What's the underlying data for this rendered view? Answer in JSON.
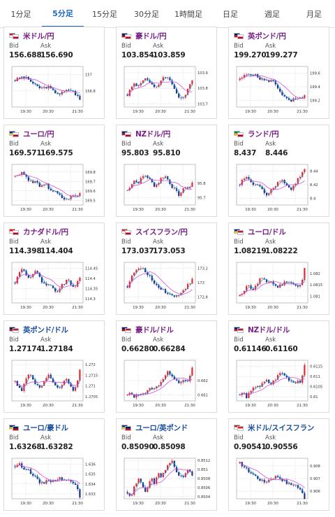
{
  "tabs": [
    {
      "label": "1分足",
      "active": false
    },
    {
      "label": "5分足",
      "active": true
    },
    {
      "label": "15分足",
      "active": false
    },
    {
      "label": "30分足",
      "active": false
    },
    {
      "label": "1時間足",
      "active": false
    },
    {
      "label": "日足",
      "active": false
    },
    {
      "label": "週足",
      "active": false
    },
    {
      "label": "月足",
      "active": false
    }
  ],
  "bid_label": "Bid",
  "ask_label": "Ask",
  "time_labels": [
    "19:30",
    "20:30",
    "21:30"
  ],
  "colors": {
    "up": "#e8242c",
    "down": "#1c2f8c",
    "ma_fast": "#1fa4e0",
    "ma_slow": "#d43ad4",
    "active_tab": "#1a66c9"
  },
  "pairs": [
    {
      "name": "米ドル/円",
      "name_color": "purple",
      "flags": [
        "us-flag",
        "jp-flag"
      ],
      "bid": "156.688",
      "ask": "156.690",
      "y_ticks": [
        "157",
        "156.8"
      ],
      "ylim": [
        156.6,
        157.1
      ],
      "trend": [
        156.93,
        156.95,
        156.97,
        156.96,
        156.94,
        156.9,
        156.86,
        156.84,
        156.83,
        156.85,
        156.84,
        156.8,
        156.78,
        156.76,
        156.78,
        156.8,
        156.82,
        156.79,
        156.75,
        156.69
      ]
    },
    {
      "name": "豪ドル/円",
      "name_color": "purple",
      "flags": [
        "au-flag",
        "jp-flag"
      ],
      "bid": "103.854",
      "ask": "103.859",
      "y_ticks": [
        "103.9",
        "103.8",
        "103.7"
      ],
      "ylim": [
        103.68,
        103.94
      ],
      "trend": [
        103.76,
        103.8,
        103.83,
        103.81,
        103.84,
        103.87,
        103.85,
        103.82,
        103.8,
        103.82,
        103.86,
        103.88,
        103.86,
        103.83,
        103.79,
        103.75,
        103.73,
        103.76,
        103.8,
        103.85
      ]
    },
    {
      "name": "英ポンド/円",
      "name_color": "purple",
      "flags": [
        "gb-flag",
        "jp-flag"
      ],
      "bid": "199.270",
      "ask": "199.277",
      "y_ticks": [
        "199.6",
        "199.4",
        "199.2"
      ],
      "ylim": [
        199.1,
        199.7
      ],
      "trend": [
        199.5,
        199.55,
        199.58,
        199.6,
        199.58,
        199.55,
        199.52,
        199.5,
        199.48,
        199.5,
        199.47,
        199.4,
        199.32,
        199.25,
        199.2,
        199.18,
        199.22,
        199.2,
        199.24,
        199.27
      ]
    },
    {
      "name": "ユーロ/円",
      "name_color": "purple",
      "flags": [
        "eu-flag",
        "jp-flag"
      ],
      "bid": "169.571",
      "ask": "169.575",
      "y_ticks": [
        "169.8",
        "169.7",
        "169.6",
        "169.5"
      ],
      "ylim": [
        169.45,
        169.88
      ],
      "trend": [
        169.75,
        169.78,
        169.8,
        169.76,
        169.72,
        169.68,
        169.7,
        169.66,
        169.64,
        169.67,
        169.62,
        169.6,
        169.58,
        169.55,
        169.52,
        169.5,
        169.53,
        169.55,
        169.54,
        169.57
      ]
    },
    {
      "name": "NZドル/円",
      "name_color": "purple",
      "flags": [
        "nz-flag",
        "jp-flag"
      ],
      "bid": "95.803",
      "ask": "95.810",
      "y_ticks": [
        "95.8",
        "95.7"
      ],
      "ylim": [
        95.65,
        95.93
      ],
      "trend": [
        95.75,
        95.79,
        95.82,
        95.8,
        95.83,
        95.86,
        95.84,
        95.81,
        95.78,
        95.8,
        95.84,
        95.85,
        95.82,
        95.78,
        95.75,
        95.72,
        95.74,
        95.78,
        95.76,
        95.8
      ]
    },
    {
      "name": "ランド/円",
      "name_color": "purple",
      "flags": [
        "za-flag",
        "jp-flag"
      ],
      "bid": "8.437",
      "ask": "8.446",
      "y_ticks": [
        "8.44",
        "8.42",
        "8.4"
      ],
      "ylim": [
        8.39,
        8.45
      ],
      "trend": [
        8.42,
        8.428,
        8.432,
        8.425,
        8.418,
        8.422,
        8.415,
        8.41,
        8.405,
        8.412,
        8.418,
        8.422,
        8.428,
        8.424,
        8.418,
        8.412,
        8.42,
        8.428,
        8.435,
        8.442
      ]
    },
    {
      "name": "カナダドル/円",
      "name_color": "purple",
      "flags": [
        "ca-flag",
        "jp-flag"
      ],
      "bid": "114.398",
      "ask": "114.404",
      "y_ticks": [
        "114.45",
        "114.4",
        "114.35",
        "114.3"
      ],
      "ylim": [
        114.28,
        114.48
      ],
      "trend": [
        114.38,
        114.42,
        114.45,
        114.43,
        114.4,
        114.42,
        114.44,
        114.41,
        114.38,
        114.36,
        114.37,
        114.35,
        114.33,
        114.35,
        114.37,
        114.39,
        114.38,
        114.36,
        114.37,
        114.4
      ]
    },
    {
      "name": "スイスフラン/円",
      "name_color": "purple",
      "flags": [
        "ch-flag",
        "jp-flag"
      ],
      "bid": "173.037",
      "ask": "173.053",
      "y_ticks": [
        "173.2",
        "173",
        "172.8"
      ],
      "ylim": [
        172.72,
        173.28
      ],
      "trend": [
        172.95,
        173.05,
        173.15,
        173.18,
        173.2,
        173.16,
        173.12,
        173.05,
        172.98,
        172.95,
        172.92,
        172.88,
        172.85,
        172.82,
        172.8,
        172.84,
        172.88,
        172.93,
        172.98,
        173.04
      ]
    },
    {
      "name": "ユーロ/ドル",
      "name_color": "purple",
      "flags": [
        "eu-flag",
        "us-flag"
      ],
      "bid": "1.08219",
      "ask": "1.08222",
      "y_ticks": [
        "1.082",
        "1.0815",
        "1.081"
      ],
      "ylim": [
        1.0807,
        1.0825
      ],
      "trend": [
        1.081,
        1.0812,
        1.0815,
        1.0814,
        1.0813,
        1.0815,
        1.0818,
        1.0817,
        1.0816,
        1.0817,
        1.0815,
        1.0814,
        1.0815,
        1.0816,
        1.0817,
        1.0816,
        1.0815,
        1.0814,
        1.0815,
        1.0822
      ]
    },
    {
      "name": "英ポンド/ドル",
      "name_color": "blue",
      "flags": [
        "gb-flag",
        "us-flag"
      ],
      "bid": "1.27174",
      "ask": "1.27184",
      "y_ticks": [
        "1.272",
        "1.2715",
        "1.271",
        "1.2705"
      ],
      "ylim": [
        1.2703,
        1.2722
      ],
      "trend": [
        1.2712,
        1.271,
        1.2708,
        1.2712,
        1.2716,
        1.2714,
        1.2711,
        1.2709,
        1.271,
        1.2713,
        1.2715,
        1.2712,
        1.271,
        1.2708,
        1.2711,
        1.2713,
        1.271,
        1.2708,
        1.271,
        1.2717
      ]
    },
    {
      "name": "豪ドル/ドル",
      "name_color": "purple",
      "flags": [
        "au-flag",
        "us-flag"
      ],
      "bid": "0.66280",
      "ask": "0.66284",
      "y_ticks": [
        "0.662",
        "0.661"
      ],
      "ylim": [
        0.6606,
        0.6634
      ],
      "trend": [
        0.661,
        0.6611,
        0.6609,
        0.661,
        0.6612,
        0.6611,
        0.6613,
        0.6615,
        0.6614,
        0.6617,
        0.662,
        0.6623,
        0.6626,
        0.6624,
        0.6621,
        0.6619,
        0.662,
        0.6619,
        0.662,
        0.6628
      ]
    },
    {
      "name": "NZドル/ドル",
      "name_color": "purple",
      "flags": [
        "nz-flag",
        "us-flag"
      ],
      "bid": "0.61146",
      "ask": "0.61160",
      "y_ticks": [
        "0.6115",
        "0.611",
        "0.6105",
        "0.61"
      ],
      "ylim": [
        0.6098,
        0.6118
      ],
      "trend": [
        0.6101,
        0.6102,
        0.61,
        0.6102,
        0.6104,
        0.6106,
        0.6105,
        0.6107,
        0.6108,
        0.6106,
        0.6108,
        0.611,
        0.6112,
        0.6111,
        0.6109,
        0.6108,
        0.6107,
        0.6108,
        0.6107,
        0.6115
      ]
    },
    {
      "name": "ユーロ/豪ドル",
      "name_color": "blue",
      "flags": [
        "eu-flag",
        "au-flag"
      ],
      "bid": "1.63268",
      "ask": "1.63282",
      "y_ticks": [
        "1.636",
        "1.635",
        "1.634",
        "1.633"
      ],
      "ylim": [
        1.6325,
        1.6366
      ],
      "trend": [
        1.6358,
        1.636,
        1.6358,
        1.6355,
        1.6354,
        1.635,
        1.6346,
        1.6342,
        1.634,
        1.6343,
        1.6345,
        1.6342,
        1.6345,
        1.6347,
        1.6344,
        1.6343,
        1.6344,
        1.6342,
        1.634,
        1.6328
      ]
    },
    {
      "name": "ユーロ/英ポンド",
      "name_color": "blue",
      "flags": [
        "eu-flag",
        "gb-flag"
      ],
      "bid": "0.85090",
      "ask": "0.85098",
      "y_ticks": [
        "0.8512",
        "0.851",
        "0.8508",
        "0.8506",
        "0.8504"
      ],
      "ylim": [
        0.85035,
        0.85125
      ],
      "trend": [
        0.8505,
        0.8504,
        0.8506,
        0.8508,
        0.8507,
        0.8505,
        0.8506,
        0.8508,
        0.8507,
        0.8509,
        0.8508,
        0.851,
        0.8511,
        0.8512,
        0.851,
        0.8509,
        0.8508,
        0.8509,
        0.851,
        0.8509
      ]
    },
    {
      "name": "米ドル/スイスフラン",
      "name_color": "blue",
      "flags": [
        "us-flag",
        "ch-flag"
      ],
      "bid": "0.90541",
      "ask": "0.90556",
      "y_ticks": [
        "0.908",
        "0.907",
        "0.906"
      ],
      "ylim": [
        0.9054,
        0.9086
      ],
      "trend": [
        0.9082,
        0.908,
        0.9077,
        0.9075,
        0.9073,
        0.9071,
        0.9069,
        0.9067,
        0.9068,
        0.907,
        0.9071,
        0.9072,
        0.907,
        0.9068,
        0.9066,
        0.9065,
        0.9066,
        0.9063,
        0.906,
        0.9055
      ]
    }
  ]
}
